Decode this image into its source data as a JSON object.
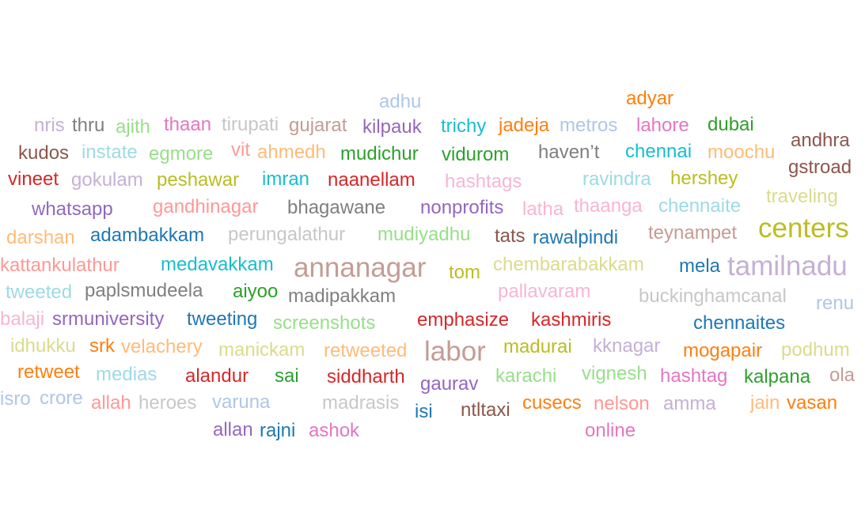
{
  "words": [
    {
      "text": "adhu",
      "color": "#aec7e8"
    },
    {
      "text": "adyar",
      "color": "#ff7f0e"
    },
    {
      "text": "nris",
      "color": "#c5b0d5"
    },
    {
      "text": "thru",
      "color": "#7f7f7f"
    },
    {
      "text": "ajith",
      "color": "#98df8a"
    },
    {
      "text": "thaan",
      "color": "#e377c2"
    },
    {
      "text": "tirupati",
      "color": "#c7c7c7"
    },
    {
      "text": "gujarat",
      "color": "#c49c94"
    },
    {
      "text": "kilpauk",
      "color": "#9467bd"
    },
    {
      "text": "trichy",
      "color": "#17becf"
    },
    {
      "text": "jadeja",
      "color": "#ff7f0e"
    },
    {
      "text": "metros",
      "color": "#aec7e8"
    },
    {
      "text": "lahore",
      "color": "#e377c2"
    },
    {
      "text": "dubai",
      "color": "#2ca02c"
    },
    {
      "text": "andhra",
      "color": "#8c564b"
    },
    {
      "text": "kudos",
      "color": "#8c564b"
    },
    {
      "text": "instate",
      "color": "#9edae5"
    },
    {
      "text": "egmore",
      "color": "#98df8a"
    },
    {
      "text": "vit",
      "color": "#ff9896"
    },
    {
      "text": "ahmedh",
      "color": "#ffbb78"
    },
    {
      "text": "mudichur",
      "color": "#2ca02c"
    },
    {
      "text": "vidurom",
      "color": "#2ca02c"
    },
    {
      "text": "haven’t",
      "color": "#7f7f7f"
    },
    {
      "text": "chennai",
      "color": "#17becf"
    },
    {
      "text": "moochu",
      "color": "#ffbb78"
    },
    {
      "text": "gstroad",
      "color": "#8c564b"
    },
    {
      "text": "vineet",
      "color": "#d62728"
    },
    {
      "text": "gokulam",
      "color": "#c5b0d5"
    },
    {
      "text": "peshawar",
      "color": "#bcbd22"
    },
    {
      "text": "imran",
      "color": "#17becf"
    },
    {
      "text": "naanellam",
      "color": "#d62728"
    },
    {
      "text": "hashtags",
      "color": "#f7b6d2"
    },
    {
      "text": "ravindra",
      "color": "#9edae5"
    },
    {
      "text": "hershey",
      "color": "#bcbd22"
    },
    {
      "text": "traveling",
      "color": "#dbdb8d"
    },
    {
      "text": "whatsapp",
      "color": "#9467bd"
    },
    {
      "text": "gandhinagar",
      "color": "#ff9896"
    },
    {
      "text": "bhagawane",
      "color": "#7f7f7f"
    },
    {
      "text": "nonprofits",
      "color": "#9467bd"
    },
    {
      "text": "latha",
      "color": "#f7b6d2"
    },
    {
      "text": "thaanga",
      "color": "#f7b6d2"
    },
    {
      "text": "chennaite",
      "color": "#9edae5"
    },
    {
      "text": "darshan",
      "color": "#ffbb78"
    },
    {
      "text": "adambakkam",
      "color": "#1f77b4"
    },
    {
      "text": "perungalathur",
      "color": "#c7c7c7"
    },
    {
      "text": "mudiyadhu",
      "color": "#98df8a"
    },
    {
      "text": "tats",
      "color": "#8c564b"
    },
    {
      "text": "rawalpindi",
      "color": "#1f77b4"
    },
    {
      "text": "teynampet",
      "color": "#c49c94"
    },
    {
      "text": "centers",
      "color": "#bcbd22"
    },
    {
      "text": "kattankulathur",
      "color": "#ff9896"
    },
    {
      "text": "medavakkam",
      "color": "#17becf"
    },
    {
      "text": "annanagar",
      "color": "#c49c94"
    },
    {
      "text": "tom",
      "color": "#bcbd22"
    },
    {
      "text": "chembarabakkam",
      "color": "#dbdb8d"
    },
    {
      "text": "mela",
      "color": "#1f77b4"
    },
    {
      "text": "tamilnadu",
      "color": "#c5b0d5"
    },
    {
      "text": "tweeted",
      "color": "#9edae5"
    },
    {
      "text": "paplsmudeela",
      "color": "#7f7f7f"
    },
    {
      "text": "aiyoo",
      "color": "#2ca02c"
    },
    {
      "text": "madipakkam",
      "color": "#7f7f7f"
    },
    {
      "text": "pallavaram",
      "color": "#f7b6d2"
    },
    {
      "text": "buckinghamcanal",
      "color": "#c7c7c7"
    },
    {
      "text": "renu",
      "color": "#aec7e8"
    },
    {
      "text": "balaji",
      "color": "#f7b6d2"
    },
    {
      "text": "srmuniversity",
      "color": "#9467bd"
    },
    {
      "text": "tweeting",
      "color": "#1f77b4"
    },
    {
      "text": "screenshots",
      "color": "#98df8a"
    },
    {
      "text": "emphasize",
      "color": "#d62728"
    },
    {
      "text": "kashmiris",
      "color": "#d62728"
    },
    {
      "text": "chennaites",
      "color": "#1f77b4"
    },
    {
      "text": "idhukku",
      "color": "#dbdb8d"
    },
    {
      "text": "srk",
      "color": "#ff7f0e"
    },
    {
      "text": "velachery",
      "color": "#ffbb78"
    },
    {
      "text": "manickam",
      "color": "#dbdb8d"
    },
    {
      "text": "retweeted",
      "color": "#ffbb78"
    },
    {
      "text": "labor",
      "color": "#c49c94"
    },
    {
      "text": "madurai",
      "color": "#bcbd22"
    },
    {
      "text": "kknagar",
      "color": "#c5b0d5"
    },
    {
      "text": "mogapair",
      "color": "#ff7f0e"
    },
    {
      "text": "podhum",
      "color": "#dbdb8d"
    },
    {
      "text": "retweet",
      "color": "#ff7f0e"
    },
    {
      "text": "medias",
      "color": "#9edae5"
    },
    {
      "text": "alandur",
      "color": "#d62728"
    },
    {
      "text": "sai",
      "color": "#2ca02c"
    },
    {
      "text": "siddharth",
      "color": "#d62728"
    },
    {
      "text": "karachi",
      "color": "#98df8a"
    },
    {
      "text": "vignesh",
      "color": "#98df8a"
    },
    {
      "text": "hashtag",
      "color": "#e377c2"
    },
    {
      "text": "kalpana",
      "color": "#2ca02c"
    },
    {
      "text": "ola",
      "color": "#c49c94"
    },
    {
      "text": "gaurav",
      "color": "#9467bd"
    },
    {
      "text": "isro",
      "color": "#aec7e8"
    },
    {
      "text": "crore",
      "color": "#aec7e8"
    },
    {
      "text": "allah",
      "color": "#ff9896"
    },
    {
      "text": "heroes",
      "color": "#c7c7c7"
    },
    {
      "text": "varuna",
      "color": "#aec7e8"
    },
    {
      "text": "madrasis",
      "color": "#c7c7c7"
    },
    {
      "text": "isi",
      "color": "#1f77b4"
    },
    {
      "text": "ntltaxi",
      "color": "#8c564b"
    },
    {
      "text": "cusecs",
      "color": "#ff7f0e"
    },
    {
      "text": "nelson",
      "color": "#ff9896"
    },
    {
      "text": "amma",
      "color": "#c5b0d5"
    },
    {
      "text": "jain",
      "color": "#ffbb78"
    },
    {
      "text": "vasan",
      "color": "#ff7f0e"
    },
    {
      "text": "allan",
      "color": "#9467bd"
    },
    {
      "text": "rajni",
      "color": "#1f77b4"
    },
    {
      "text": "ashok",
      "color": "#e377c2"
    },
    {
      "text": "online",
      "color": "#e377c2"
    }
  ]
}
